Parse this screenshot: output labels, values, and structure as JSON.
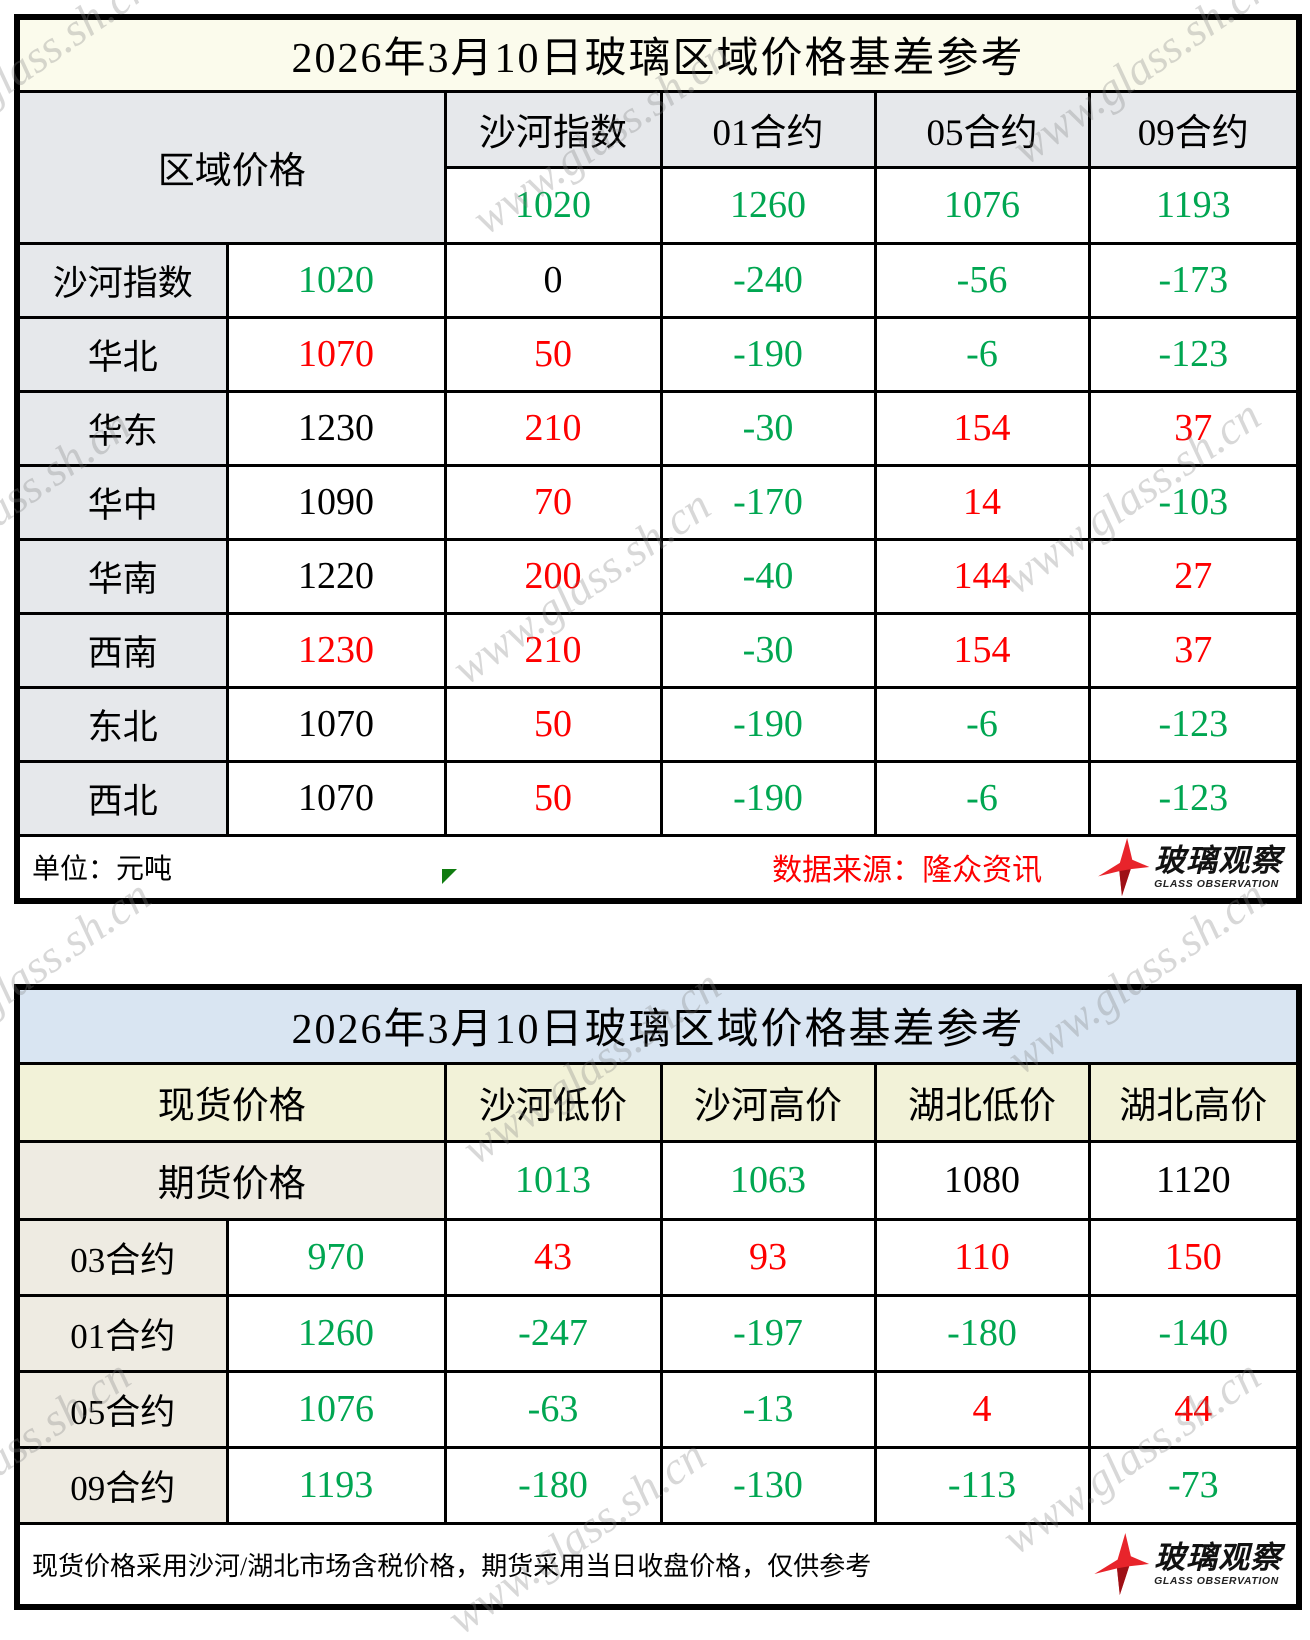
{
  "watermark": {
    "text": "www.glass.sh.cn"
  },
  "logo": {
    "name": "玻璃观察",
    "sub": "GLASS OBSERVATION"
  },
  "table1": {
    "title": "2026年3月10日玻璃区域价格基差参考",
    "corner_label": "区域价格",
    "col_headers": [
      "沙河指数",
      "01合约",
      "05合约",
      "09合约"
    ],
    "header_values": [
      {
        "v": "1020",
        "c": "green"
      },
      {
        "v": "1260",
        "c": "green"
      },
      {
        "v": "1076",
        "c": "green"
      },
      {
        "v": "1193",
        "c": "green"
      }
    ],
    "rows": [
      {
        "label": "沙河指数",
        "price": {
          "v": "1020",
          "c": "green"
        },
        "cells": [
          {
            "v": "0",
            "c": "black"
          },
          {
            "v": "-240",
            "c": "green"
          },
          {
            "v": "-56",
            "c": "green"
          },
          {
            "v": "-173",
            "c": "green"
          }
        ]
      },
      {
        "label": "华北",
        "price": {
          "v": "1070",
          "c": "red"
        },
        "cells": [
          {
            "v": "50",
            "c": "red"
          },
          {
            "v": "-190",
            "c": "green"
          },
          {
            "v": "-6",
            "c": "green"
          },
          {
            "v": "-123",
            "c": "green"
          }
        ]
      },
      {
        "label": "华东",
        "price": {
          "v": "1230",
          "c": "black"
        },
        "cells": [
          {
            "v": "210",
            "c": "red"
          },
          {
            "v": "-30",
            "c": "green"
          },
          {
            "v": "154",
            "c": "red"
          },
          {
            "v": "37",
            "c": "red"
          }
        ]
      },
      {
        "label": "华中",
        "price": {
          "v": "1090",
          "c": "black"
        },
        "cells": [
          {
            "v": "70",
            "c": "red"
          },
          {
            "v": "-170",
            "c": "green"
          },
          {
            "v": "14",
            "c": "red"
          },
          {
            "v": "-103",
            "c": "green"
          }
        ]
      },
      {
        "label": "华南",
        "price": {
          "v": "1220",
          "c": "black"
        },
        "cells": [
          {
            "v": "200",
            "c": "red"
          },
          {
            "v": "-40",
            "c": "green"
          },
          {
            "v": "144",
            "c": "red"
          },
          {
            "v": "27",
            "c": "red"
          }
        ]
      },
      {
        "label": "西南",
        "price": {
          "v": "1230",
          "c": "red"
        },
        "cells": [
          {
            "v": "210",
            "c": "red"
          },
          {
            "v": "-30",
            "c": "green"
          },
          {
            "v": "154",
            "c": "red"
          },
          {
            "v": "37",
            "c": "red"
          }
        ]
      },
      {
        "label": "东北",
        "price": {
          "v": "1070",
          "c": "black"
        },
        "cells": [
          {
            "v": "50",
            "c": "red"
          },
          {
            "v": "-190",
            "c": "green"
          },
          {
            "v": "-6",
            "c": "green"
          },
          {
            "v": "-123",
            "c": "green"
          }
        ]
      },
      {
        "label": "西北",
        "price": {
          "v": "1070",
          "c": "black"
        },
        "cells": [
          {
            "v": "50",
            "c": "red"
          },
          {
            "v": "-190",
            "c": "green"
          },
          {
            "v": "-6",
            "c": "green"
          },
          {
            "v": "-123",
            "c": "green"
          }
        ]
      }
    ],
    "footer": {
      "unit": "单位：元吨",
      "source": "数据来源：隆众资讯"
    }
  },
  "table2": {
    "title": "2026年3月10日玻璃区域价格基差参考",
    "corner_label": "现货价格",
    "col_headers": [
      "沙河低价",
      "沙河高价",
      "湖北低价",
      "湖北高价"
    ],
    "futures_row": {
      "label": "期货价格",
      "values": [
        {
          "v": "1013",
          "c": "green"
        },
        {
          "v": "1063",
          "c": "green"
        },
        {
          "v": "1080",
          "c": "black"
        },
        {
          "v": "1120",
          "c": "black"
        }
      ]
    },
    "rows": [
      {
        "label": "03合约",
        "price": {
          "v": "970",
          "c": "green"
        },
        "cells": [
          {
            "v": "43",
            "c": "red"
          },
          {
            "v": "93",
            "c": "red"
          },
          {
            "v": "110",
            "c": "red"
          },
          {
            "v": "150",
            "c": "red"
          }
        ]
      },
      {
        "label": "01合约",
        "price": {
          "v": "1260",
          "c": "green"
        },
        "cells": [
          {
            "v": "-247",
            "c": "green"
          },
          {
            "v": "-197",
            "c": "green"
          },
          {
            "v": "-180",
            "c": "green"
          },
          {
            "v": "-140",
            "c": "green"
          }
        ]
      },
      {
        "label": "05合约",
        "price": {
          "v": "1076",
          "c": "green"
        },
        "cells": [
          {
            "v": "-63",
            "c": "green"
          },
          {
            "v": "-13",
            "c": "green"
          },
          {
            "v": "4",
            "c": "red"
          },
          {
            "v": "44",
            "c": "red"
          }
        ]
      },
      {
        "label": "09合约",
        "price": {
          "v": "1193",
          "c": "green"
        },
        "cells": [
          {
            "v": "-180",
            "c": "green"
          },
          {
            "v": "-130",
            "c": "green"
          },
          {
            "v": "-113",
            "c": "green"
          },
          {
            "v": "-73",
            "c": "green"
          }
        ]
      }
    ],
    "footer": {
      "note": "现货价格采用沙河/湖北市场含税价格，期货采用当日收盘价格，仅供参考"
    }
  }
}
